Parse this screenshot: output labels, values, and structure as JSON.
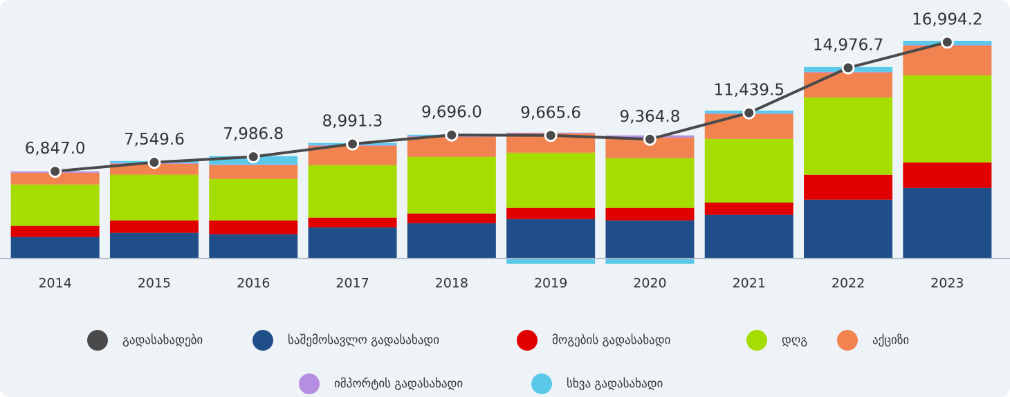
{
  "chart_data": {
    "type": "bar",
    "categories": [
      "2014",
      "2015",
      "2016",
      "2017",
      "2018",
      "2019",
      "2020",
      "2021",
      "2022",
      "2023"
    ],
    "ylim": [
      -1000,
      19000
    ],
    "series": [
      {
        "name": "საშემოსავლო გადასახადი",
        "color": "#1f4e89",
        "values": [
          1683,
          2009,
          1900,
          2443,
          2769,
          3094,
          2986,
          3420,
          4615,
          5537
        ]
      },
      {
        "name": "მოგების გადასახადი",
        "color": "#e00000",
        "values": [
          869,
          977,
          1086,
          760,
          760,
          869,
          977,
          977,
          1954,
          2009
        ]
      },
      {
        "name": "დღგ",
        "color": "#a6dd00",
        "values": [
          3257,
          3583,
          3257,
          4126,
          4452,
          4343,
          3909,
          4995,
          6080,
          6840
        ]
      },
      {
        "name": "აქციზი",
        "color": "#f0834f",
        "values": [
          923,
          869,
          1086,
          1520,
          1574,
          1520,
          1629,
          1954,
          1954,
          2334
        ]
      },
      {
        "name": "იმპორტის გადასახადი",
        "color": "#b48ee0",
        "values": [
          109,
          54,
          54,
          54,
          54,
          54,
          163,
          54,
          54,
          54
        ]
      },
      {
        "name": "სხვა გადასახადი",
        "color": "#5bc8e8",
        "values": [
          0,
          163,
          651,
          163,
          109,
          -434,
          -434,
          217,
          380,
          326
        ]
      }
    ],
    "line": {
      "name": "გადასახადები",
      "color": "#4a4a4a",
      "values": [
        6847.0,
        7549.6,
        7986.8,
        8991.3,
        9696.0,
        9665.6,
        9364.8,
        11439.5,
        14976.7,
        16994.2
      ],
      "value_labels": [
        "6,847.0",
        "7,549.6",
        "7,986.8",
        "8,991.3",
        "9,696.0",
        "9,665.6",
        "9,364.8",
        "11,439.5",
        "14,976.7",
        "16,994.2"
      ]
    }
  }
}
